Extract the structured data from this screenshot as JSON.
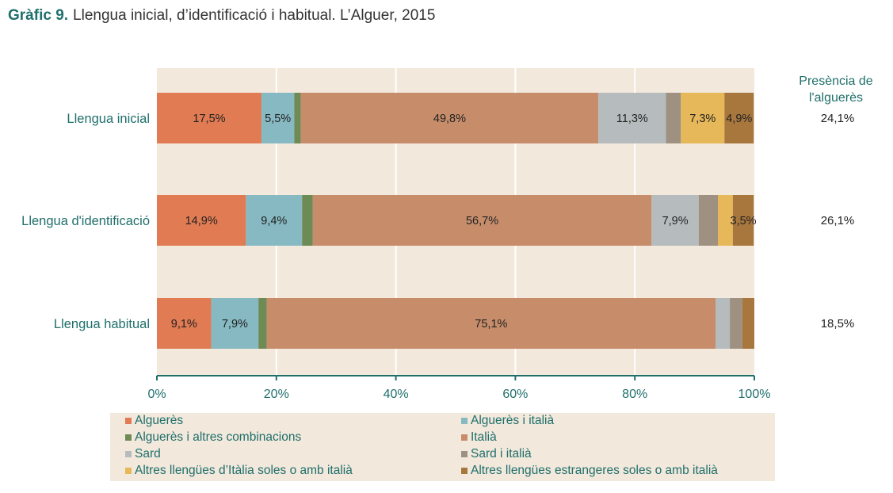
{
  "header": {
    "label": "Gràfic 9.",
    "title": "Llengua inicial, d’identificació i habitual. L’Alguer, 2015"
  },
  "presence": {
    "heading_line1": "Presència de",
    "heading_line2": "l'alguerès"
  },
  "chart_data": {
    "type": "bar",
    "orientation": "horizontal",
    "stacked": true,
    "title": "Llengua inicial, d’identificació i habitual. L’Alguer, 2015",
    "xlabel": "",
    "ylabel": "",
    "xlim": [
      0,
      100
    ],
    "grid": true,
    "legend_position": "bottom",
    "categories": [
      "Llengua inicial",
      "Llengua d'identificació",
      "Llengua habitual"
    ],
    "x_ticks": [
      "0%",
      "20%",
      "40%",
      "60%",
      "80%",
      "100%"
    ],
    "series": [
      {
        "name": "Alguerès",
        "color": "#e07b53",
        "values": [
          17.5,
          14.9,
          9.1
        ],
        "labels": [
          "17,5%",
          "14,9%",
          "9,1%"
        ]
      },
      {
        "name": "Alguerès i italià",
        "color": "#86b9c2",
        "values": [
          5.5,
          9.4,
          7.9
        ],
        "labels": [
          "5,5%",
          "9,4%",
          "7,9%"
        ]
      },
      {
        "name": "Alguerès i altres combinacions",
        "color": "#6e8a55",
        "values": [
          1.1,
          1.8,
          1.4
        ],
        "labels": [
          "",
          "",
          ""
        ]
      },
      {
        "name": "Italià",
        "color": "#c78d6b",
        "values": [
          49.8,
          56.7,
          75.1
        ],
        "labels": [
          "49,8%",
          "56,7%",
          "75,1%"
        ]
      },
      {
        "name": "Sard",
        "color": "#b6bcbd",
        "values": [
          11.3,
          7.9,
          2.4
        ],
        "labels": [
          "11,3%",
          "7,9%",
          ""
        ]
      },
      {
        "name": "Sard i italià",
        "color": "#9e9181",
        "values": [
          2.5,
          3.2,
          2.1
        ],
        "labels": [
          "",
          "",
          ""
        ]
      },
      {
        "name": "Altres llengües d’Itàlia soles o amb italià",
        "color": "#e7b85a",
        "values": [
          7.3,
          2.5,
          0.0
        ],
        "labels": [
          "7,3%",
          "",
          ""
        ]
      },
      {
        "name": "Altres llengües estrangeres soles o amb italià",
        "color": "#a8773e",
        "values": [
          4.9,
          3.5,
          2.0
        ],
        "labels": [
          "4,9%",
          "3,5%",
          ""
        ]
      }
    ],
    "presence_values": [
      "24,1%",
      "26,1%",
      "18,5%"
    ]
  },
  "legend": [
    "Alguerès",
    "Alguerès i italià",
    "Alguerès i altres combinacions",
    "Italià",
    "Sard",
    "Sard i italià",
    "Altres llengües d’Itàlia soles o amb italià",
    "Altres llengües estrangeres soles o amb italià"
  ]
}
